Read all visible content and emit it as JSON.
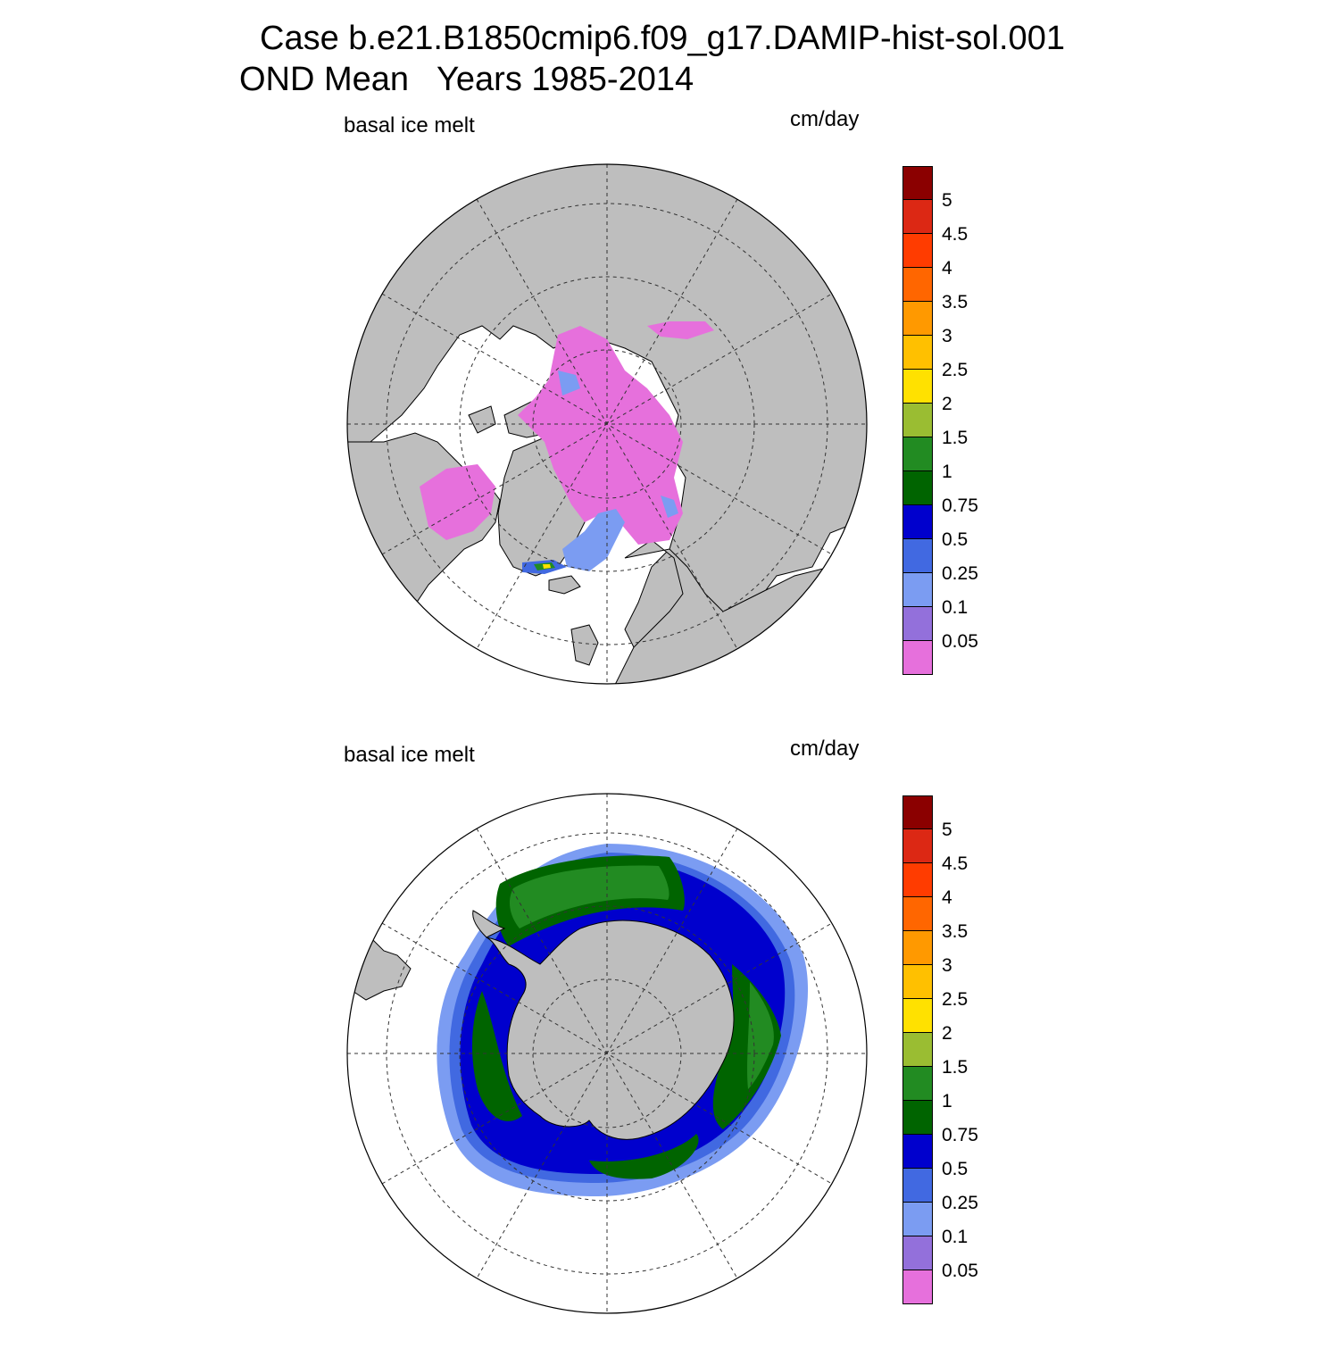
{
  "title": {
    "line1": "Case b.e21.B1850cmip6.f09_g17.DAMIP-hist-sol.001",
    "line2": "OND Mean   Years 1985-2014"
  },
  "colors": {
    "land": "#bebebe",
    "ocean_no_ice": "#ffffff",
    "scale": [
      "#e670dc",
      "#9370db",
      "#7b9cf2",
      "#4169e1",
      "#0000cd",
      "#006400",
      "#228b22",
      "#9abd32",
      "#ffe100",
      "#ffc000",
      "#ff9900",
      "#ff6600",
      "#ff3c00",
      "#dc2814",
      "#8b0000"
    ]
  },
  "colorbar": {
    "labels": [
      "5",
      "4.5",
      "4",
      "3.5",
      "3",
      "2.5",
      "2",
      "1.5",
      "1",
      "0.75",
      "0.5",
      "0.25",
      "0.1",
      "0.05"
    ]
  },
  "panels": [
    {
      "id": "north",
      "hemisphere": "Arctic (north polar stereographic)",
      "variable": "basal ice melt",
      "units": "cm/day"
    },
    {
      "id": "south",
      "hemisphere": "Antarctic (south polar stereographic)",
      "variable": "basal ice melt",
      "units": "cm/day"
    }
  ]
}
